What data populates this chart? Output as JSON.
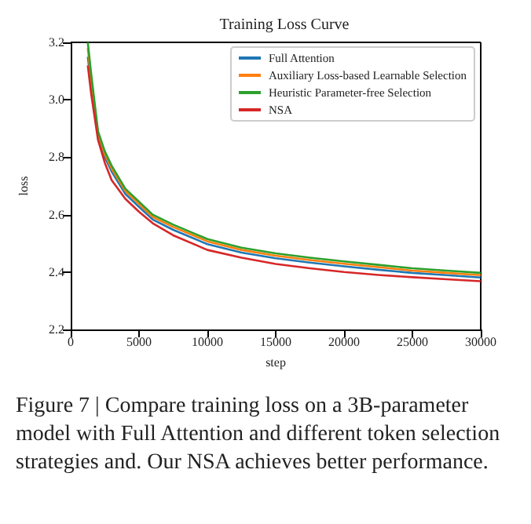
{
  "chart_data": {
    "type": "line",
    "title": "Training Loss Curve",
    "xlabel": "step",
    "ylabel": "loss",
    "x": [
      1250,
      1500,
      2000,
      2500,
      3000,
      4000,
      5000,
      6000,
      7500,
      10000,
      12500,
      15000,
      17500,
      20000,
      22500,
      25000,
      27500,
      30000
    ],
    "series": [
      {
        "name": "Full Attention",
        "color": "#1f77b4",
        "values": [
          3.15,
          3.05,
          2.875,
          2.8,
          2.75,
          2.672,
          2.627,
          2.583,
          2.547,
          2.497,
          2.468,
          2.448,
          2.433,
          2.42,
          2.408,
          2.397,
          2.389,
          2.381
        ]
      },
      {
        "name": "Auxiliary Loss-based Learnable Selection",
        "color": "#ff7f0e",
        "values": [
          3.18,
          3.07,
          2.883,
          2.81,
          2.76,
          2.682,
          2.637,
          2.592,
          2.557,
          2.507,
          2.477,
          2.457,
          2.442,
          2.429,
          2.417,
          2.405,
          2.397,
          2.389
        ]
      },
      {
        "name": "Heuristic Parameter-free Selection",
        "color": "#2ca02c",
        "values": [
          3.2,
          3.09,
          2.89,
          2.82,
          2.77,
          2.69,
          2.645,
          2.6,
          2.565,
          2.515,
          2.485,
          2.465,
          2.45,
          2.437,
          2.425,
          2.413,
          2.405,
          2.397
        ]
      },
      {
        "name": "NSA",
        "color": "#d62728",
        "values": [
          3.12,
          3.02,
          2.86,
          2.78,
          2.72,
          2.655,
          2.61,
          2.57,
          2.528,
          2.477,
          2.45,
          2.428,
          2.413,
          2.4,
          2.39,
          2.382,
          2.375,
          2.368
        ]
      }
    ],
    "xlim": [
      0,
      30000
    ],
    "xticks": [
      0,
      5000,
      10000,
      15000,
      20000,
      25000,
      30000
    ],
    "ylim": [
      2.2,
      3.2
    ],
    "yticks": [
      {
        "value": 2.2,
        "label": "2.2"
      },
      {
        "value": 2.4,
        "label": "2.4"
      },
      {
        "value": 2.6,
        "label": "2.6"
      },
      {
        "value": 2.8,
        "label": "2.8"
      },
      {
        "value": 3,
        "label": "3.0"
      },
      {
        "value": 3.2,
        "label": "3.2"
      }
    ],
    "legend": "top right",
    "grid": false,
    "marker": "none",
    "line_style": "solid",
    "annotations": [
      "Figure 7 | Compare training loss on a 3B-parameter model with Full Attention and different token selection strategies and. Our NSA achieves better performance."
    ]
  }
}
